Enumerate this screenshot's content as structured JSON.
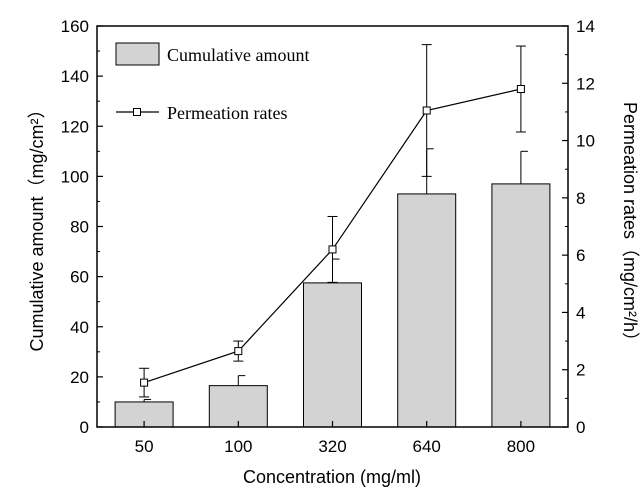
{
  "chart_data": {
    "type": "bar+line",
    "categories": [
      "50",
      "100",
      "320",
      "640",
      "800"
    ],
    "x_label": "Concentration (mg/ml)",
    "y_left": {
      "label": "Cumulative amount（mg/cm²）",
      "range": [
        0,
        160
      ],
      "ticks": [
        "0",
        "20",
        "40",
        "60",
        "80",
        "100",
        "120",
        "140",
        "160"
      ]
    },
    "y_right": {
      "label": "Permeation rates（mg/cm²/h）",
      "range": [
        0,
        14
      ],
      "ticks": [
        "0",
        "2",
        "4",
        "6",
        "8",
        "10",
        "12",
        "14"
      ]
    },
    "series": [
      {
        "name": "Cumulative amount",
        "kind": "bar",
        "axis": "left",
        "values": [
          10,
          16.5,
          57.5,
          93,
          97
        ],
        "errors": [
          1,
          4,
          9.5,
          18,
          13
        ],
        "color": "#d3d3d3"
      },
      {
        "name": "Permeation rates",
        "kind": "line",
        "axis": "right",
        "values": [
          1.55,
          2.65,
          6.2,
          11.05,
          11.8
        ],
        "errors": [
          0.5,
          0.35,
          1.15,
          2.3,
          1.5
        ],
        "color": "#000000"
      }
    ],
    "legend": {
      "position": "top-left"
    },
    "grid": false
  }
}
